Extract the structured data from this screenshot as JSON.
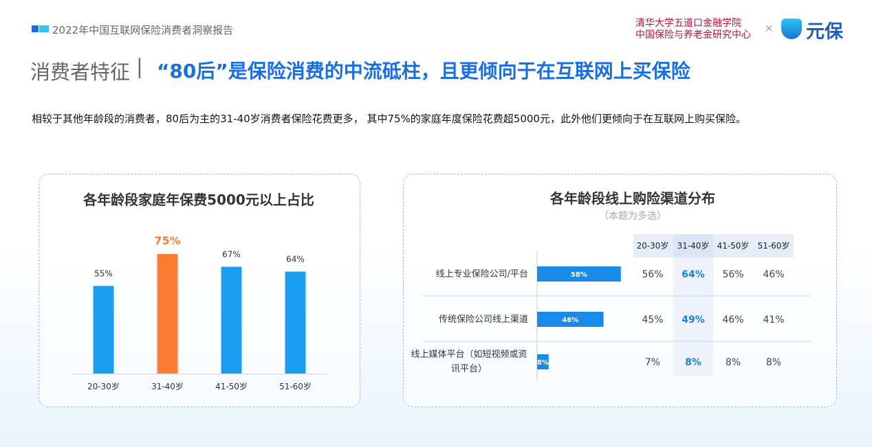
{
  "header": {
    "report": "2022年中国互联网保险消费者洞察报告",
    "org1": "清华大学五道口金融学院",
    "org2": "中国保险与养老金研究中心",
    "times": "×",
    "brand": "元保"
  },
  "title": {
    "section": "消费者特征",
    "bar": "|",
    "headline": "“80后”是保险消费的中流砥柱，且更倾向于在互联网上买保险"
  },
  "intro": "相较于其他年龄段的消费者，80后为主的31-40岁消费者保险花费更多， 其中75%的家庭年度保险花费超5000元，此外他们更倾向于在互联网上购买保险。",
  "chart_data": [
    {
      "type": "bar",
      "title": "各年龄段家庭年保费5000元以上占比",
      "categories": [
        "20-30岁",
        "31-40岁",
        "41-50岁",
        "51-60岁"
      ],
      "values": [
        55,
        75,
        67,
        64
      ],
      "value_labels": [
        "55%",
        "75%",
        "67%",
        "64%"
      ],
      "colors": [
        "#1a9ff0",
        "#ff7d33",
        "#1a9ff0",
        "#1a9ff0"
      ]
    },
    {
      "type": "hbar_table",
      "title": "各年龄段线上购险渠道分布",
      "subtitle": "（本题为多选）",
      "categories": [
        "线上专业保险公司/平台",
        "传统保险公司线上渠道",
        "线上媒体平台（如短视频或资讯平台）"
      ],
      "values": [
        58,
        46,
        8
      ],
      "value_labels": [
        "58%",
        "46%",
        "8%"
      ],
      "color": "#1a8ae8",
      "table": {
        "columns": [
          "20-30岁",
          "31-40岁",
          "41-50岁",
          "51-60岁"
        ],
        "rows": [
          [
            "56%",
            "64%",
            "56%",
            "46%"
          ],
          [
            "45%",
            "49%",
            "46%",
            "41%"
          ],
          [
            "7%",
            "8%",
            "8%",
            "8%"
          ]
        ]
      },
      "highlight_column": 1
    }
  ]
}
